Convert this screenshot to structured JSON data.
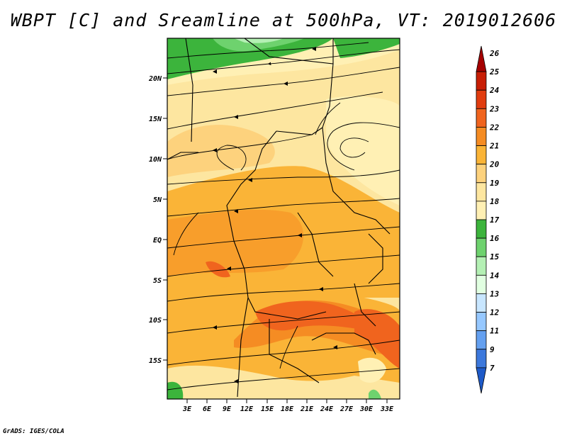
{
  "title": "WBPT [C] and Sreamline at 500hPa, VT: 2019012606",
  "footer": "GrADS: IGES/COLA",
  "map": {
    "lat_labels": [
      "20N",
      "15N",
      "10N",
      "5N",
      "EQ",
      "5S",
      "10S",
      "15S"
    ],
    "lon_labels": [
      "3E",
      "6E",
      "9E",
      "12E",
      "15E",
      "18E",
      "21E",
      "24E",
      "27E",
      "30E",
      "33E"
    ],
    "field": "wet-bulb potential temperature",
    "vectors": "streamlines"
  },
  "colorbar": {
    "levels": [
      "26",
      "25",
      "24",
      "23",
      "22",
      "21",
      "20",
      "19",
      "18",
      "17",
      "16",
      "15",
      "14",
      "13",
      "12",
      "11",
      "9",
      "7"
    ],
    "colors": [
      "#a50000",
      "#c81e05",
      "#e13c0f",
      "#f0641e",
      "#f58c23",
      "#fab437",
      "#fdd27d",
      "#fde6a0",
      "#fff0b4",
      "#3cb43c",
      "#6ed26e",
      "#b4f0b4",
      "#e1ffe1",
      "#c8e6ff",
      "#96c8ff",
      "#64a0f0",
      "#3c78dc",
      "#1e5ac8"
    ]
  }
}
